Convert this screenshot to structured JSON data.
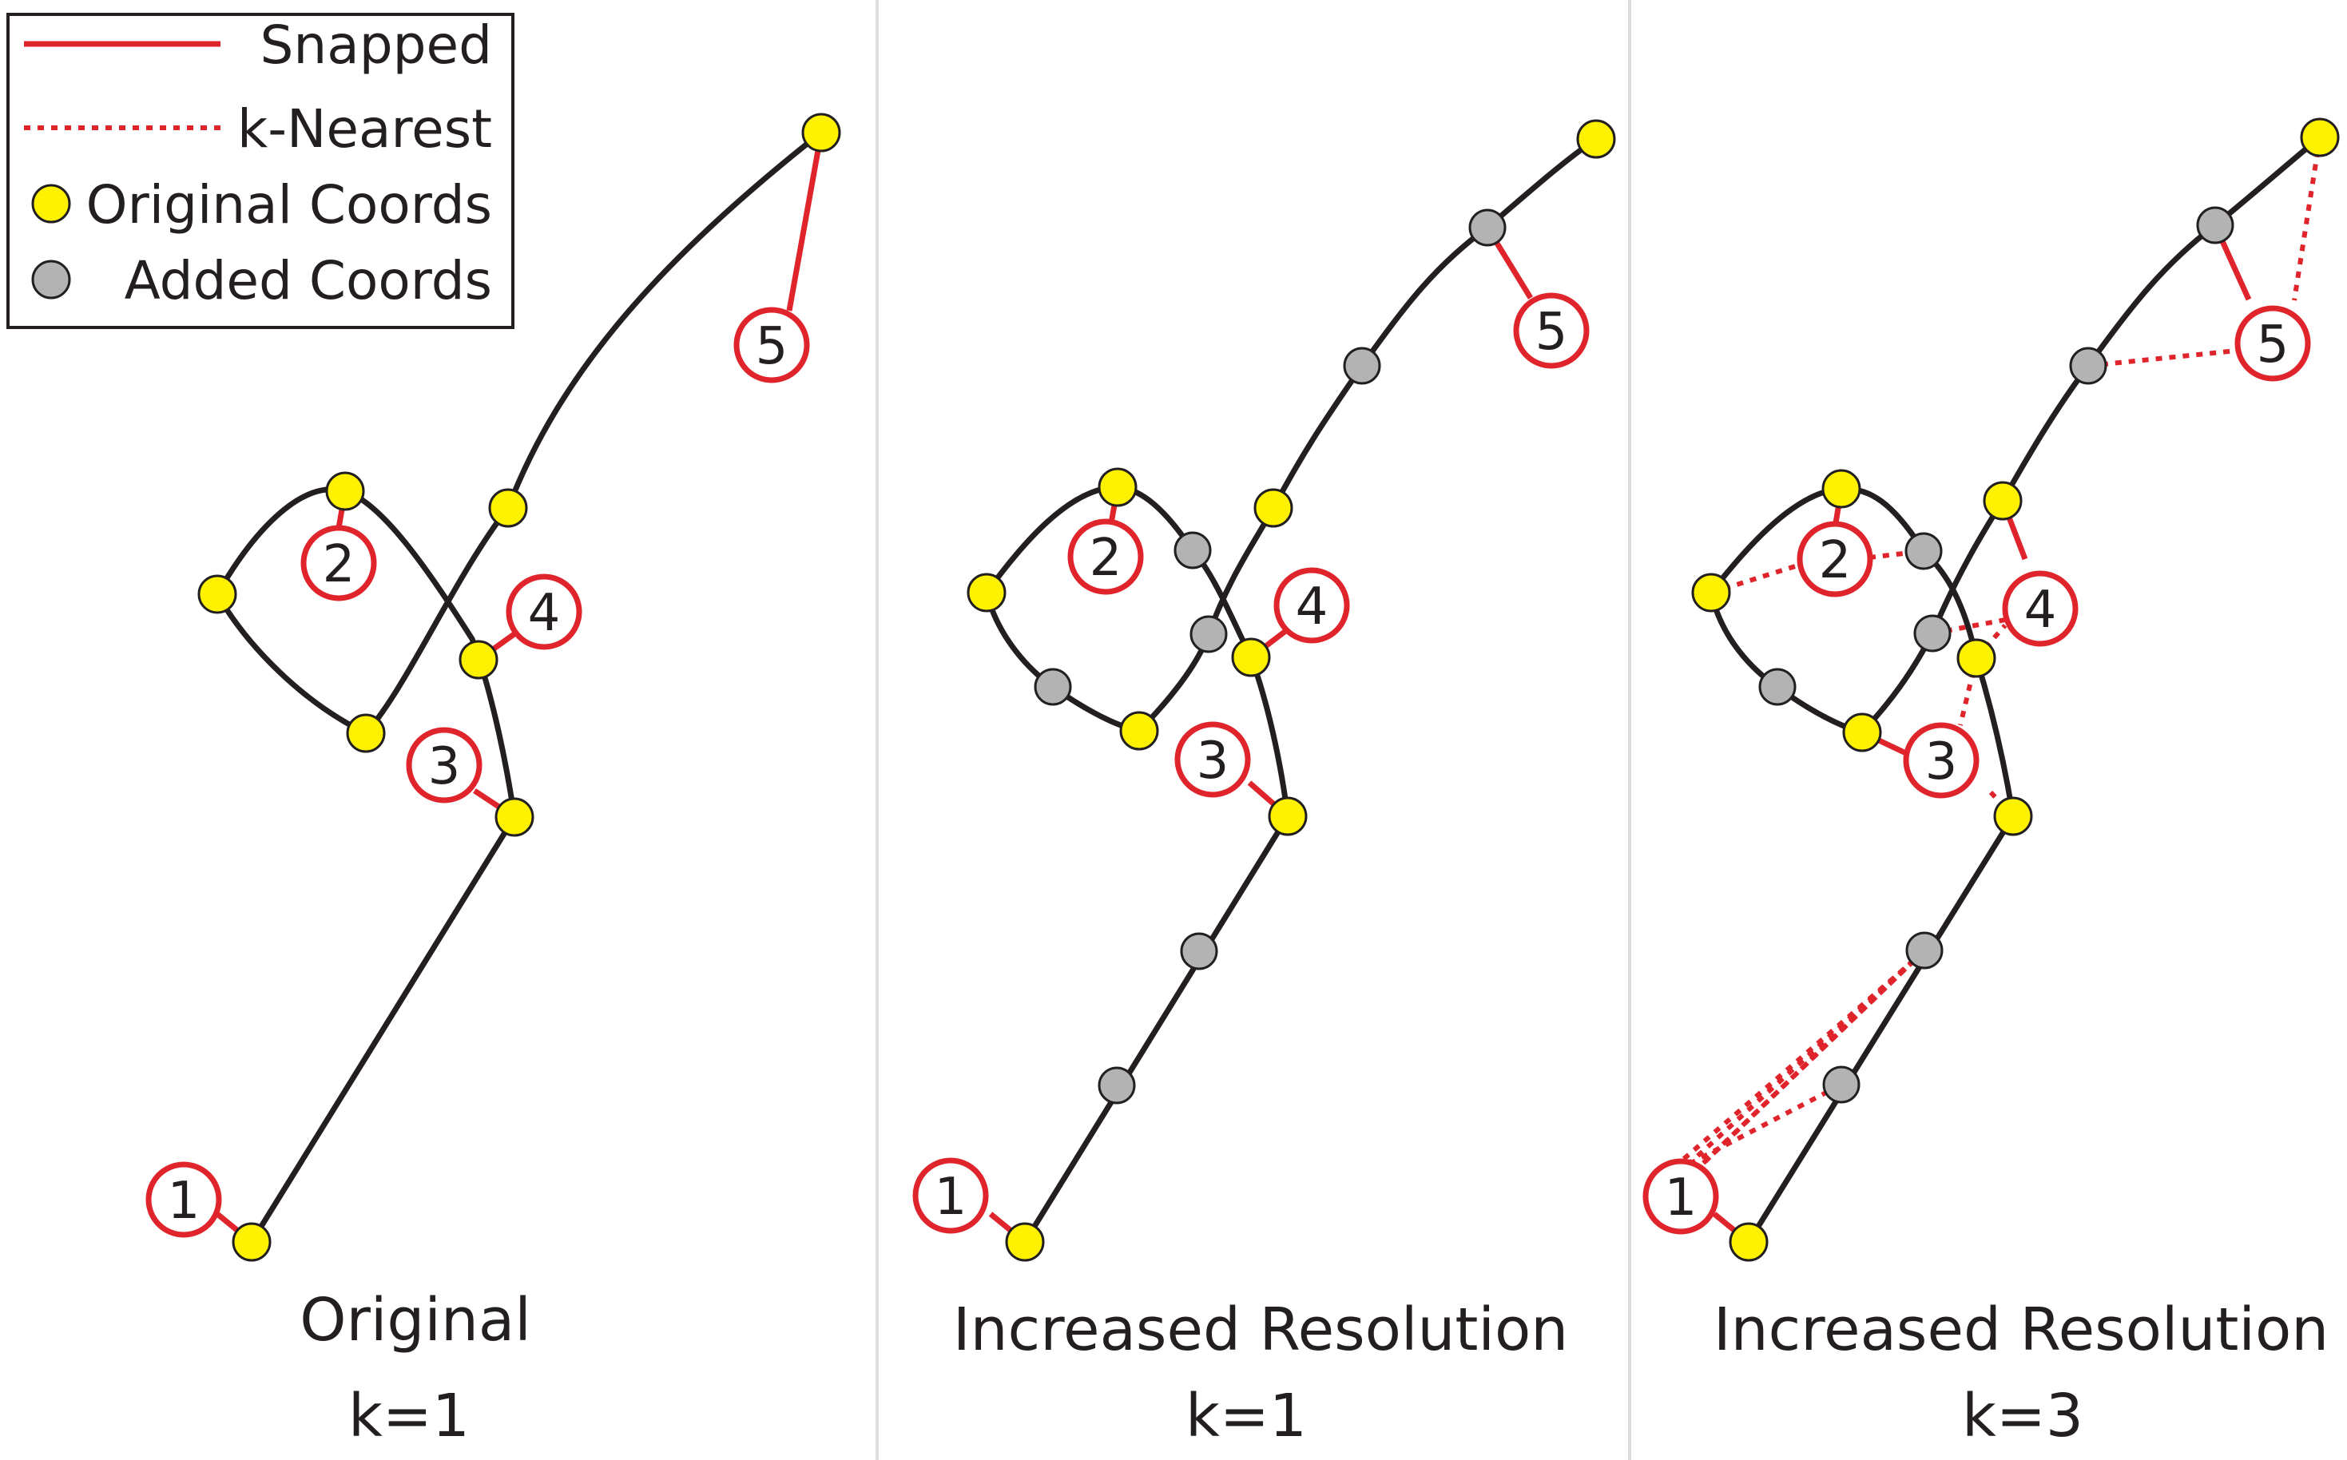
{
  "legend": {
    "items": [
      {
        "key": "snapped",
        "label": "Snapped",
        "style": "solid-line"
      },
      {
        "key": "knearest",
        "label": "k-Nearest",
        "style": "dotted-line"
      },
      {
        "key": "original",
        "label": "Original Coords",
        "style": "yellow-dot"
      },
      {
        "key": "added",
        "label": "Added Coords",
        "style": "gray-dot"
      }
    ]
  },
  "panels": [
    {
      "title": "Original",
      "subtitle": "k=1"
    },
    {
      "title": "Increased Resolution",
      "subtitle": "k=1"
    },
    {
      "title": "Increased Resolution",
      "subtitle": "k=3"
    }
  ],
  "observation_labels": [
    "1",
    "2",
    "3",
    "4",
    "5"
  ],
  "colors": {
    "track": "#231f20",
    "snapped": "#e0242b",
    "original_coord": "#fff200",
    "added_coord": "#b3b3b3",
    "divider": "#d9d9d9"
  }
}
